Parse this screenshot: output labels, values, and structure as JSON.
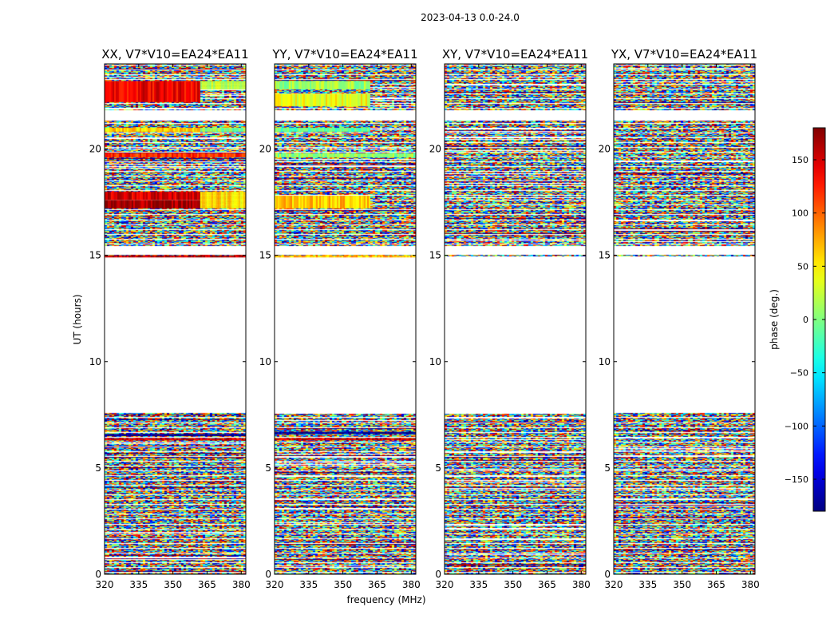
{
  "figure": {
    "suptitle": "2023-04-13 0.0-24.0",
    "xlabel": "frequency (MHz)",
    "ylabel": "UT (hours)",
    "colorbar_label": "phase (deg.)"
  },
  "chart_data": {
    "type": "heatmap",
    "colormap": "jet",
    "x_range": [
      320,
      382
    ],
    "x_ticks": [
      320,
      335,
      350,
      365,
      380
    ],
    "y_range": [
      0,
      24
    ],
    "y_ticks": [
      0,
      5,
      10,
      15,
      20
    ],
    "color_range": [
      -180,
      180
    ],
    "color_ticks": [
      150,
      100,
      50,
      0,
      -50,
      -100,
      -150
    ],
    "data_coverage_hours": [
      [
        0,
        7.6
      ],
      [
        14.9,
        15.0
      ],
      [
        15.4,
        24.0
      ]
    ],
    "blank_hours": [
      [
        7.6,
        14.9
      ],
      [
        15.0,
        15.4
      ],
      [
        21.3,
        21.8
      ]
    ],
    "panels": [
      {
        "title": "XX, V7*V10=EA24*EA11",
        "coherent_bands": [
          {
            "hours": [
              22.2,
              23.2
            ],
            "freq": [
              320,
              362
            ],
            "phase": 140
          },
          {
            "hours": [
              22.8,
              23.2
            ],
            "freq": [
              362,
              382
            ],
            "phase": 25
          },
          {
            "hours": [
              20.8,
              21.0
            ],
            "freq": [
              320,
              362
            ],
            "phase": 60
          },
          {
            "hours": [
              20.8,
              21.0
            ],
            "freq": [
              362,
              382
            ],
            "phase": 5
          },
          {
            "hours": [
              19.6,
              19.8
            ],
            "freq": [
              320,
              382
            ],
            "phase": 120
          },
          {
            "hours": [
              17.6,
              18.0
            ],
            "freq": [
              320,
              362
            ],
            "phase": 150
          },
          {
            "hours": [
              17.2,
              17.6
            ],
            "freq": [
              320,
              362
            ],
            "phase": 170
          },
          {
            "hours": [
              17.2,
              18.0
            ],
            "freq": [
              362,
              382
            ],
            "phase": 60
          },
          {
            "hours": [
              14.9,
              15.0
            ],
            "freq": [
              320,
              382
            ],
            "phase": 160
          },
          {
            "hours": [
              6.5,
              6.6
            ],
            "freq": [
              320,
              382
            ],
            "phase": -175
          },
          {
            "hours": [
              6.3,
              6.4
            ],
            "freq": [
              320,
              382
            ],
            "phase": 150
          }
        ]
      },
      {
        "title": "YY, V7*V10=EA24*EA11",
        "coherent_bands": [
          {
            "hours": [
              22.8,
              23.2
            ],
            "freq": [
              320,
              362
            ],
            "phase": 10
          },
          {
            "hours": [
              22.0,
              22.6
            ],
            "freq": [
              320,
              362
            ],
            "phase": 40
          },
          {
            "hours": [
              20.8,
              21.0
            ],
            "freq": [
              320,
              362
            ],
            "phase": -10
          },
          {
            "hours": [
              19.6,
              19.8
            ],
            "freq": [
              320,
              382
            ],
            "phase": 5
          },
          {
            "hours": [
              17.2,
              17.8
            ],
            "freq": [
              320,
              362
            ],
            "phase": 65
          },
          {
            "hours": [
              14.9,
              15.0
            ],
            "freq": [
              320,
              382
            ],
            "phase": 70
          },
          {
            "hours": [
              6.6,
              6.7
            ],
            "freq": [
              320,
              382
            ],
            "phase": -175
          },
          {
            "hours": [
              6.3,
              6.4
            ],
            "freq": [
              320,
              382
            ],
            "phase": 150
          }
        ]
      },
      {
        "title": "XY, V7*V10=EA24*EA11",
        "coherent_bands": []
      },
      {
        "title": "YX, V7*V10=EA24*EA11",
        "coherent_bands": []
      }
    ]
  }
}
